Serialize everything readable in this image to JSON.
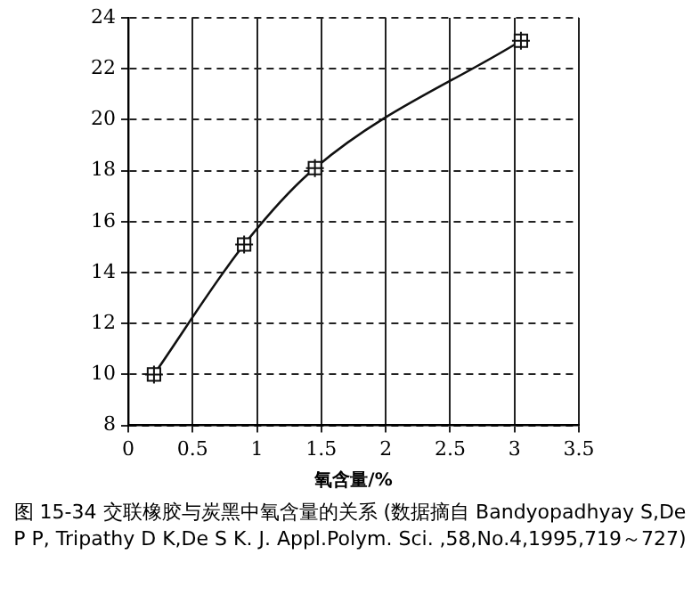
{
  "chart_data": {
    "type": "line",
    "title": "图 15-34 交联橡胶与炭黑中氧含量的关系 (数据摘自 Bandyopadhyay S,De P P, Tripathy D K,De S K. J. Appl.Polym. Sci. ,58,No.4,1995,719～727)",
    "xlabel": "氧含量/%",
    "series": [
      {
        "color": "#111111",
        "x": [
          0.2,
          0.9,
          1.45,
          3.05
        ],
        "values": [
          10,
          15.1,
          18.1,
          23.1
        ]
      }
    ],
    "xlim": [
      0,
      3.5
    ],
    "xticks": [
      0,
      0.5,
      1,
      1.5,
      2,
      2.5,
      3,
      3.5
    ],
    "ylim": [
      8,
      24
    ],
    "yticks": [
      8,
      10,
      12,
      14,
      16,
      18,
      20,
      22,
      24
    ],
    "grid": true,
    "marker": "square",
    "line_style": "solid"
  }
}
